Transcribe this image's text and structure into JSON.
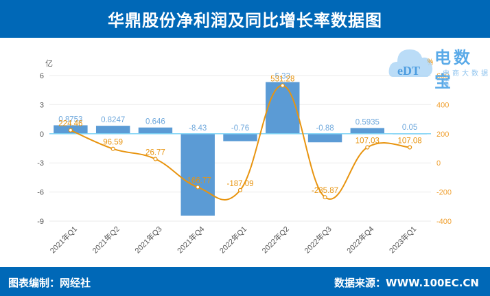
{
  "header": {
    "title": "华鼎股份净利润及同比增长率数据图"
  },
  "footer": {
    "left": "图表编制：网经社",
    "right": "数据来源：WWW.100EC.CN"
  },
  "logo": {
    "text": "电数宝",
    "subtitle": "电商大数据库",
    "mark": "eDT",
    "mark_suffix": "%"
  },
  "colors": {
    "header_bg": "#0068B7",
    "bar": "#5B9BD5",
    "line": "#E8940F",
    "zero_line": "#7FD3F5",
    "bar_label": "#6FA8DC",
    "line_label": "#E8940F"
  },
  "chart_data": {
    "type": "bar+line",
    "title": "华鼎股份净利润及同比增长率数据图",
    "categories": [
      "2021年Q1",
      "2021年Q2",
      "2021年Q3",
      "2021年Q4",
      "2022年Q1",
      "2022年Q2",
      "2022年Q3",
      "2022年Q4",
      "2023年Q1"
    ],
    "series": [
      {
        "name": "净利润",
        "type": "bar",
        "axis": "left",
        "unit": "亿",
        "values": [
          0.8753,
          0.8247,
          0.646,
          -8.43,
          -0.76,
          5.33,
          -0.88,
          0.5935,
          0.05
        ],
        "labels": [
          "0.8753",
          "0.8247",
          "0.646",
          "-8.43",
          "-0.76",
          "5.33",
          "-0.88",
          "0.5935",
          "0.05"
        ]
      },
      {
        "name": "同比增长率",
        "type": "line",
        "axis": "right",
        "unit": "%",
        "values": [
          224.46,
          96.59,
          26.77,
          -166.77,
          -187.09,
          531.28,
          -235.87,
          107.03,
          107.08
        ],
        "labels": [
          "224.46",
          "96.59",
          "26.77",
          "-166.77",
          "-187.09",
          "531.28",
          "-235.87",
          "107.03",
          "107.08"
        ]
      }
    ],
    "left_axis": {
      "label": "亿",
      "ticks": [
        "6",
        "3",
        "0",
        "-3",
        "-6",
        "-9"
      ],
      "range": [
        -9,
        6
      ]
    },
    "right_axis": {
      "label": "%",
      "ticks": [
        "600",
        "400",
        "200",
        "0",
        "-200",
        "-400"
      ],
      "range": [
        -400,
        600
      ]
    },
    "grid": true,
    "legend": "none"
  }
}
